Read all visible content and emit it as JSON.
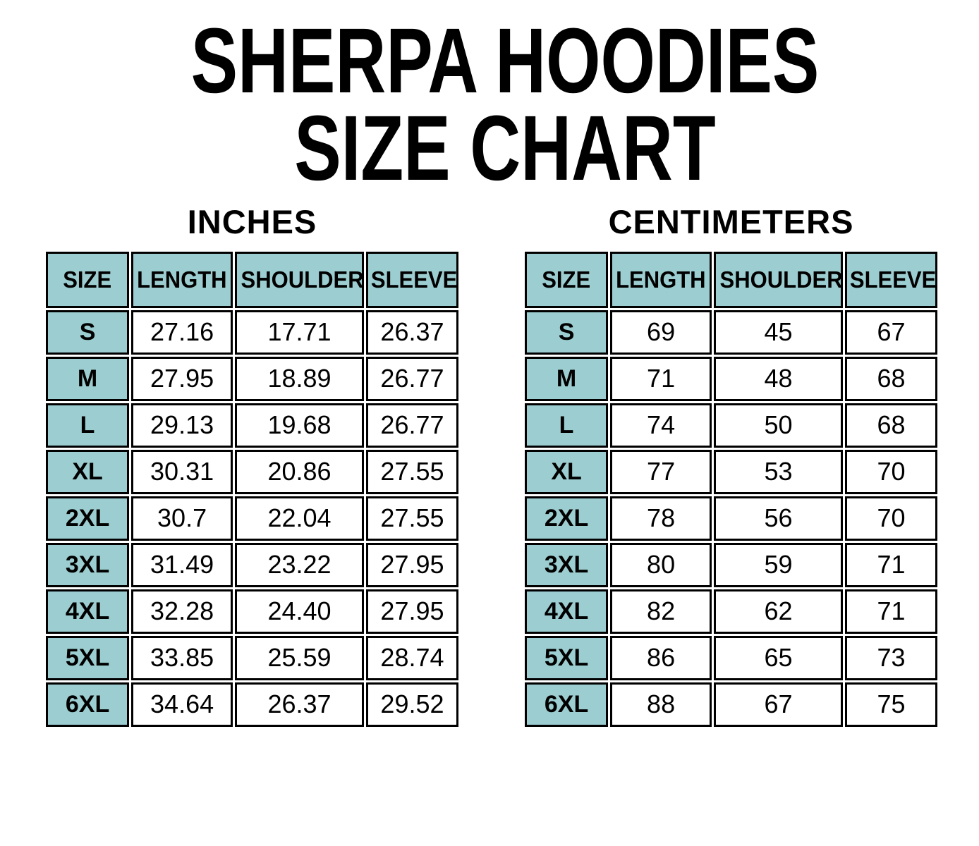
{
  "title": {
    "line1": "SHERPA HOODIES",
    "line2": "SIZE CHART"
  },
  "colors": {
    "header_fill": "#9CCED1",
    "border": "#000000",
    "background": "#FFFFFF",
    "text": "#000000"
  },
  "chart_data": [
    {
      "type": "table",
      "title": "INCHES",
      "columns": [
        "SIZE",
        "LENGTH",
        "SHOULDER",
        "SLEEVE"
      ],
      "rows": [
        [
          "S",
          "27.16",
          "17.71",
          "26.37"
        ],
        [
          "M",
          "27.95",
          "18.89",
          "26.77"
        ],
        [
          "L",
          "29.13",
          "19.68",
          "26.77"
        ],
        [
          "XL",
          "30.31",
          "20.86",
          "27.55"
        ],
        [
          "2XL",
          "30.7",
          "22.04",
          "27.55"
        ],
        [
          "3XL",
          "31.49",
          "23.22",
          "27.95"
        ],
        [
          "4XL",
          "32.28",
          "24.40",
          "27.95"
        ],
        [
          "5XL",
          "33.85",
          "25.59",
          "28.74"
        ],
        [
          "6XL",
          "34.64",
          "26.37",
          "29.52"
        ]
      ]
    },
    {
      "type": "table",
      "title": "CENTIMETERS",
      "columns": [
        "SIZE",
        "LENGTH",
        "SHOULDER",
        "SLEEVE"
      ],
      "rows": [
        [
          "S",
          "69",
          "45",
          "67"
        ],
        [
          "M",
          "71",
          "48",
          "68"
        ],
        [
          "L",
          "74",
          "50",
          "68"
        ],
        [
          "XL",
          "77",
          "53",
          "70"
        ],
        [
          "2XL",
          "78",
          "56",
          "70"
        ],
        [
          "3XL",
          "80",
          "59",
          "71"
        ],
        [
          "4XL",
          "82",
          "62",
          "71"
        ],
        [
          "5XL",
          "86",
          "65",
          "73"
        ],
        [
          "6XL",
          "88",
          "67",
          "75"
        ]
      ]
    }
  ]
}
